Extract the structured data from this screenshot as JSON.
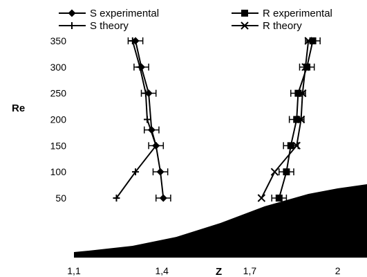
{
  "chart_data": {
    "type": "line",
    "xlabel": "Z",
    "ylabel": "Re",
    "xlim": [
      1.1,
      2.1
    ],
    "ylim": [
      50,
      350
    ],
    "x_ticks": [
      "1,1",
      "1,4",
      "1,7",
      "2"
    ],
    "x_tick_values": [
      1.1,
      1.4,
      1.7,
      2.0
    ],
    "y_ticks": [
      "50",
      "100",
      "150",
      "200",
      "250",
      "300",
      "350"
    ],
    "y_tick_values": [
      50,
      100,
      150,
      200,
      250,
      300,
      350
    ],
    "legend_position": "top",
    "series": [
      {
        "name": "S experimental",
        "marker": "diamond",
        "error_bars": true,
        "points": [
          {
            "x": 1.405,
            "y": 50,
            "err": 0.025
          },
          {
            "x": 1.395,
            "y": 100,
            "err": 0.025
          },
          {
            "x": 1.38,
            "y": 150,
            "err": 0.025
          },
          {
            "x": 1.365,
            "y": 180,
            "err": 0.025
          },
          {
            "x": 1.355,
            "y": 250,
            "err": 0.025
          },
          {
            "x": 1.33,
            "y": 300,
            "err": 0.025
          },
          {
            "x": 1.31,
            "y": 350,
            "err": 0.025
          }
        ]
      },
      {
        "name": "S theory",
        "marker": "plus",
        "error_bars": false,
        "points": [
          {
            "x": 1.245,
            "y": 50
          },
          {
            "x": 1.31,
            "y": 100
          },
          {
            "x": 1.38,
            "y": 150
          },
          {
            "x": 1.35,
            "y": 200
          },
          {
            "x": 1.345,
            "y": 250
          },
          {
            "x": 1.325,
            "y": 300
          },
          {
            "x": 1.3,
            "y": 350
          }
        ]
      },
      {
        "name": "R experimental",
        "marker": "square",
        "error_bars": true,
        "points": [
          {
            "x": 1.8,
            "y": 50,
            "err": 0.025
          },
          {
            "x": 1.825,
            "y": 100,
            "err": 0.025
          },
          {
            "x": 1.84,
            "y": 150,
            "err": 0.025
          },
          {
            "x": 1.86,
            "y": 200,
            "err": 0.025
          },
          {
            "x": 1.865,
            "y": 250,
            "err": 0.025
          },
          {
            "x": 1.895,
            "y": 300,
            "err": 0.025
          },
          {
            "x": 1.915,
            "y": 350,
            "err": 0.025
          }
        ]
      },
      {
        "name": "R theory",
        "marker": "cross",
        "error_bars": false,
        "points": [
          {
            "x": 1.74,
            "y": 50
          },
          {
            "x": 1.785,
            "y": 100
          },
          {
            "x": 1.86,
            "y": 150
          },
          {
            "x": 1.875,
            "y": 200
          },
          {
            "x": 1.88,
            "y": 250
          },
          {
            "x": 1.89,
            "y": 300
          },
          {
            "x": 1.9,
            "y": 350
          }
        ]
      }
    ],
    "shaded_profile": {
      "fill": "#000000",
      "x": [
        1.1,
        1.15,
        1.3,
        1.45,
        1.6,
        1.75,
        1.9,
        2.0,
        2.1,
        2.3
      ],
      "h": [
        0.08,
        0.1,
        0.17,
        0.3,
        0.5,
        0.74,
        0.92,
        1.0,
        1.06,
        1.07
      ]
    }
  }
}
